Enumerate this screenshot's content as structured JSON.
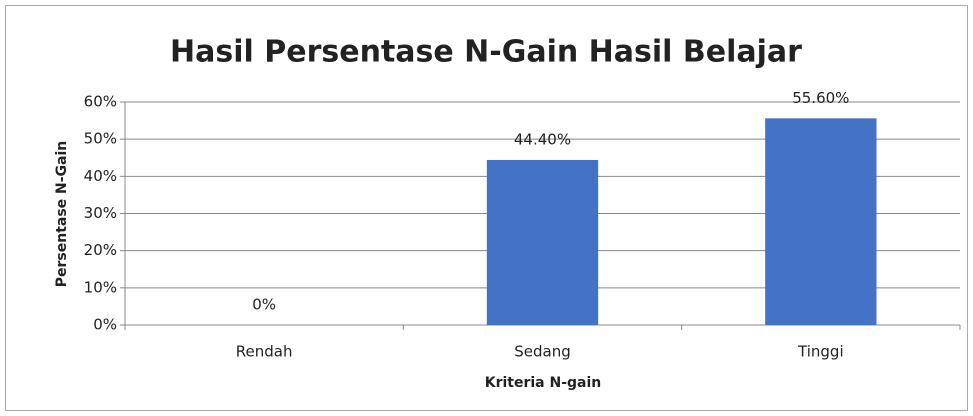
{
  "chart_data": {
    "type": "bar",
    "title": "Hasil Persentase N-Gain Hasil Belajar",
    "xlabel": "Kriteria N-gain",
    "ylabel": "Persentase N-Gain",
    "categories": [
      "Rendah",
      "Sedang",
      "Tinggi"
    ],
    "values": [
      0,
      44.4,
      55.6
    ],
    "value_labels": [
      "0%",
      "44.40%",
      "55.60%"
    ],
    "color": "#4472c4",
    "ylim": [
      0,
      60
    ],
    "yticks": [
      {
        "value": 0,
        "label": "0%"
      },
      {
        "value": 10,
        "label": "10%"
      },
      {
        "value": 20,
        "label": "20%"
      },
      {
        "value": 30,
        "label": "30%"
      },
      {
        "value": 40,
        "label": "40%"
      },
      {
        "value": 50,
        "label": "50%"
      },
      {
        "value": 60,
        "label": "60%"
      }
    ],
    "grid": true
  }
}
